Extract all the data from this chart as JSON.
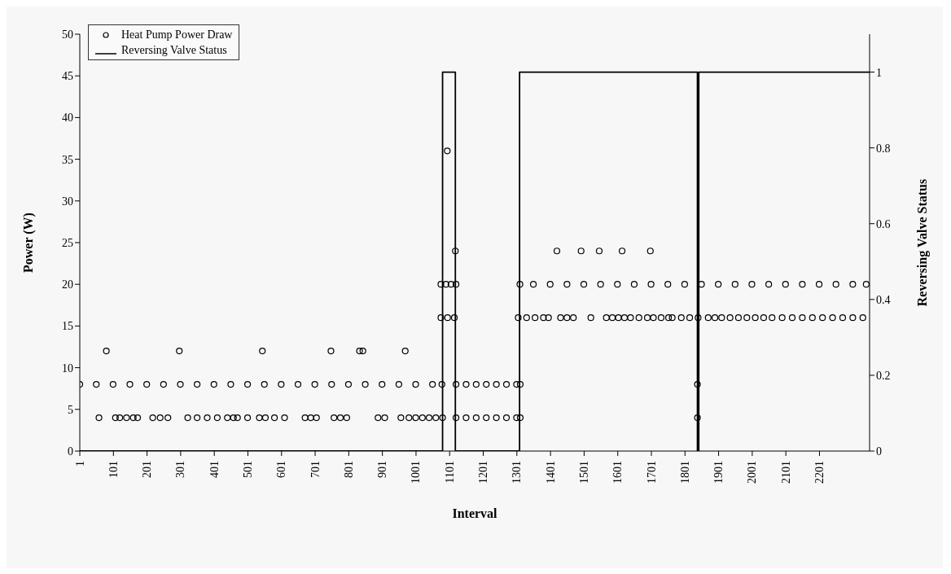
{
  "chart_data": {
    "type": "scatter",
    "xlabel": "Interval",
    "ylabel": "Power (W)",
    "y2label": "Reversing Valve Status",
    "xlim": [
      1,
      2350
    ],
    "xticks": [
      1,
      101,
      201,
      301,
      401,
      501,
      601,
      701,
      801,
      901,
      1001,
      1101,
      1201,
      1301,
      1401,
      1501,
      1601,
      1701,
      1801,
      1901,
      2001,
      2101,
      2201
    ],
    "ylim": [
      0,
      50
    ],
    "yticks": [
      0,
      5,
      10,
      15,
      20,
      25,
      30,
      35,
      40,
      45,
      50
    ],
    "y2lim": [
      0,
      1.1
    ],
    "y2ticks": [
      0,
      0.2,
      0.4,
      0.6,
      0.8,
      1
    ],
    "grid": false,
    "legend": "top left",
    "series": [
      {
        "name": "Heat Pump Power Draw",
        "marker": "circle",
        "color": "#000000",
        "x": [
          1,
          50,
          100,
          150,
          200,
          250,
          300,
          350,
          400,
          450,
          500,
          550,
          600,
          650,
          700,
          750,
          800,
          850,
          900,
          950,
          1000,
          1050,
          1078,
          58,
          107,
          120,
          140,
          160,
          173,
          218,
          240,
          263,
          322,
          350,
          380,
          410,
          440,
          458,
          470,
          500,
          535,
          553,
          580,
          610,
          671,
          688,
          705,
          757,
          776,
          795,
          888,
          908,
          956,
          980,
          1000,
          1020,
          1040,
          1060,
          1080,
          80,
          297,
          544,
          748,
          833,
          843,
          969,
          1094,
          1075,
          1090,
          1105,
          1120,
          1075,
          1095,
          1115,
          1118,
          1120,
          1150,
          1180,
          1210,
          1240,
          1270,
          1300,
          1311,
          1120,
          1150,
          1180,
          1210,
          1240,
          1270,
          1300,
          1311,
          1310,
          1350,
          1400,
          1450,
          1500,
          1550,
          1600,
          1650,
          1700,
          1750,
          1800,
          1850,
          1900,
          1950,
          2000,
          2050,
          2100,
          2150,
          2200,
          2250,
          2300,
          2340,
          1305,
          1330,
          1355,
          1380,
          1395,
          1431,
          1450,
          1469,
          1521,
          1567,
          1585,
          1603,
          1621,
          1639,
          1664,
          1689,
          1707,
          1730,
          1752,
          1763,
          1790,
          1815,
          1840,
          1870,
          1890,
          1910,
          1935,
          1960,
          1985,
          2010,
          2035,
          2060,
          2090,
          2120,
          2150,
          2180,
          2210,
          2240,
          2270,
          2300,
          2330,
          1420,
          1492,
          1546,
          1614,
          1698,
          1838,
          1838
        ],
        "values": [
          8,
          8,
          8,
          8,
          8,
          8,
          8,
          8,
          8,
          8,
          8,
          8,
          8,
          8,
          8,
          8,
          8,
          8,
          8,
          8,
          8,
          8,
          8,
          4,
          4,
          4,
          4,
          4,
          4,
          4,
          4,
          4,
          4,
          4,
          4,
          4,
          4,
          4,
          4,
          4,
          4,
          4,
          4,
          4,
          4,
          4,
          4,
          4,
          4,
          4,
          4,
          4,
          4,
          4,
          4,
          4,
          4,
          4,
          4,
          12,
          12,
          12,
          12,
          12,
          12,
          12,
          36,
          20,
          20,
          20,
          20,
          16,
          16,
          16,
          24,
          8,
          8,
          8,
          8,
          8,
          8,
          8,
          8,
          4,
          4,
          4,
          4,
          4,
          4,
          4,
          4,
          20,
          20,
          20,
          20,
          20,
          20,
          20,
          20,
          20,
          20,
          20,
          20,
          20,
          20,
          20,
          20,
          20,
          20,
          20,
          20,
          20,
          20,
          16,
          16,
          16,
          16,
          16,
          16,
          16,
          16,
          16,
          16,
          16,
          16,
          16,
          16,
          16,
          16,
          16,
          16,
          16,
          16,
          16,
          16,
          16,
          16,
          16,
          16,
          16,
          16,
          16,
          16,
          16,
          16,
          16,
          16,
          16,
          16,
          16,
          16,
          16,
          16,
          16,
          24,
          24,
          24,
          24,
          24,
          8,
          4
        ]
      },
      {
        "name": "Reversing Valve Status",
        "type": "step",
        "axis": "y2",
        "marker": "none",
        "line_style": "solid",
        "color": "#000000",
        "x": [
          1,
          1080,
          1118,
          1309,
          1838,
          1842,
          2350
        ],
        "values": [
          0,
          1,
          0,
          1,
          0,
          1,
          1
        ]
      }
    ]
  }
}
